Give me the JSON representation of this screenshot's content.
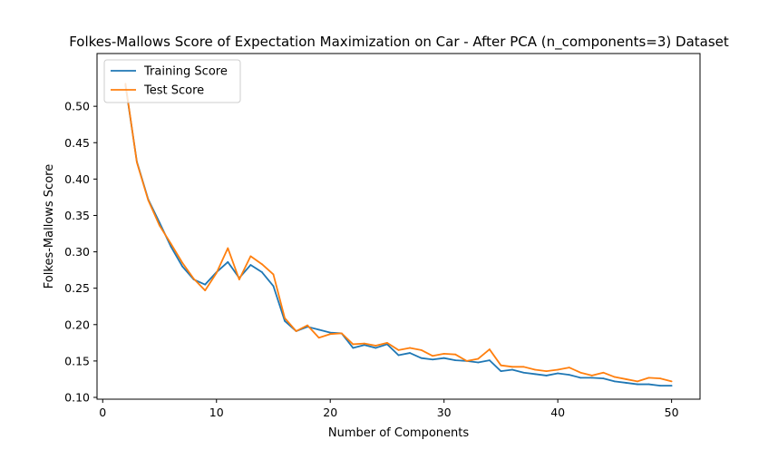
{
  "chart_data": {
    "type": "line",
    "title": "Folkes-Mallows Score of Expectation Maximization on Car - After PCA (n_components=3) Dataset",
    "xlabel": "Number of Components",
    "ylabel": "Folkes-Mallows Score",
    "xlim": [
      -0.5,
      52.5
    ],
    "ylim": [
      0.0975,
      0.5725
    ],
    "xticks": [
      0,
      10,
      20,
      30,
      40,
      50
    ],
    "xtick_labels": [
      "0",
      "10",
      "20",
      "30",
      "40",
      "50"
    ],
    "yticks": [
      0.1,
      0.15,
      0.2,
      0.25,
      0.3,
      0.35,
      0.4,
      0.45,
      0.5
    ],
    "ytick_labels": [
      "0.10",
      "0.15",
      "0.20",
      "0.25",
      "0.30",
      "0.35",
      "0.40",
      "0.45",
      "0.50"
    ],
    "legend_position": "upper-left",
    "grid": false,
    "x": [
      2,
      3,
      4,
      5,
      6,
      7,
      8,
      9,
      10,
      11,
      12,
      13,
      14,
      15,
      16,
      17,
      18,
      19,
      20,
      21,
      22,
      23,
      24,
      25,
      26,
      27,
      28,
      29,
      30,
      31,
      32,
      33,
      34,
      35,
      36,
      37,
      38,
      39,
      40,
      41,
      42,
      43,
      44,
      45,
      46,
      47,
      48,
      49,
      50
    ],
    "series": [
      {
        "name": "Training Score",
        "color": "#1f77b4",
        "values": [
          0.529,
          0.424,
          0.372,
          0.34,
          0.307,
          0.28,
          0.262,
          0.255,
          0.272,
          0.286,
          0.264,
          0.282,
          0.272,
          0.253,
          0.205,
          0.191,
          0.197,
          0.193,
          0.189,
          0.188,
          0.168,
          0.172,
          0.168,
          0.173,
          0.158,
          0.161,
          0.154,
          0.152,
          0.154,
          0.151,
          0.15,
          0.148,
          0.151,
          0.136,
          0.138,
          0.134,
          0.132,
          0.13,
          0.133,
          0.131,
          0.127,
          0.127,
          0.126,
          0.122,
          0.12,
          0.118,
          0.118,
          0.116,
          0.116
        ]
      },
      {
        "name": "Test Score",
        "color": "#ff7f0e",
        "values": [
          0.531,
          0.423,
          0.371,
          0.336,
          0.311,
          0.285,
          0.263,
          0.247,
          0.271,
          0.305,
          0.262,
          0.294,
          0.283,
          0.269,
          0.209,
          0.191,
          0.199,
          0.182,
          0.187,
          0.188,
          0.173,
          0.174,
          0.171,
          0.175,
          0.165,
          0.168,
          0.165,
          0.157,
          0.16,
          0.159,
          0.15,
          0.153,
          0.166,
          0.144,
          0.142,
          0.142,
          0.138,
          0.136,
          0.138,
          0.141,
          0.134,
          0.13,
          0.134,
          0.128,
          0.125,
          0.122,
          0.127,
          0.126,
          0.122
        ]
      }
    ]
  }
}
